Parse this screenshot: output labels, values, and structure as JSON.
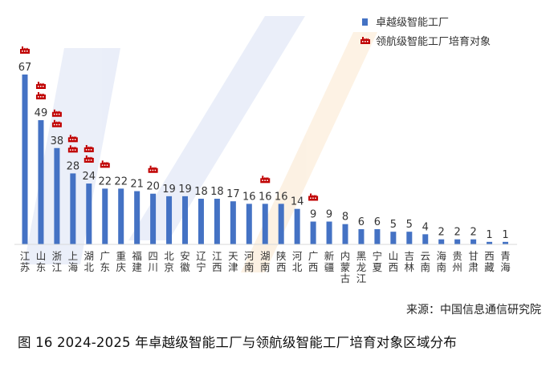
{
  "chart_data": {
    "type": "bar",
    "categories": [
      "江苏",
      "山东",
      "浙江",
      "上海",
      "湖北",
      "广东",
      "重庆",
      "福建",
      "四川",
      "北京",
      "安徽",
      "辽宁",
      "江西",
      "天津",
      "河南",
      "湖南",
      "陕西",
      "河北",
      "广西",
      "新疆",
      "内蒙古",
      "黑龙江",
      "宁夏",
      "山西",
      "吉林",
      "云南",
      "海南",
      "贵州",
      "甘肃",
      "西藏",
      "青海"
    ],
    "series": [
      {
        "name": "卓越级智能工厂",
        "values": [
          67,
          49,
          38,
          28,
          24,
          22,
          22,
          21,
          20,
          19,
          19,
          18,
          18,
          17,
          16,
          16,
          16,
          14,
          9,
          9,
          8,
          6,
          6,
          5,
          5,
          4,
          2,
          2,
          2,
          1,
          1
        ]
      },
      {
        "name": "领航级智能工厂培育对象",
        "values": [
          1,
          2,
          2,
          2,
          2,
          1,
          0,
          0,
          1,
          0,
          0,
          0,
          0,
          0,
          0,
          1,
          0,
          0,
          1,
          0,
          0,
          0,
          0,
          0,
          0,
          0,
          0,
          0,
          0,
          0,
          0
        ]
      }
    ],
    "colors": {
      "bar": "#4472C4",
      "icon": "#C00000"
    },
    "ylim": [
      0,
      70
    ],
    "legend_position": "top-right",
    "grid": false
  },
  "source": "来源：中国信息通信研究院",
  "caption": "图 16 2024-2025 年卓越级智能工厂与领航级智能工厂培育对象区域分布"
}
